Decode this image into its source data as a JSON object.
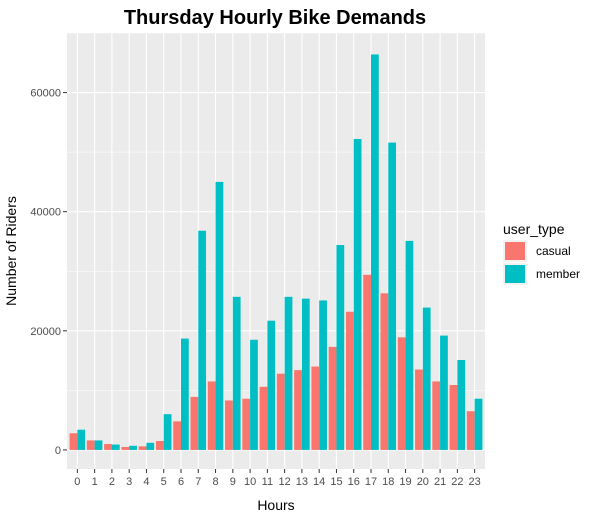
{
  "chart_data": {
    "type": "bar",
    "title": "Thursday Hourly Bike Demands",
    "xlabel": "Hours",
    "ylabel": "Number of Riders",
    "categories": [
      "0",
      "1",
      "2",
      "3",
      "4",
      "5",
      "6",
      "7",
      "8",
      "9",
      "10",
      "11",
      "12",
      "13",
      "14",
      "15",
      "16",
      "17",
      "18",
      "19",
      "20",
      "21",
      "22",
      "23"
    ],
    "series": [
      {
        "name": "casual",
        "color": "#F8766D",
        "values": [
          2800,
          1600,
          1000,
          500,
          600,
          1500,
          4800,
          8900,
          11500,
          8300,
          8600,
          10600,
          12800,
          13400,
          14000,
          17300,
          23200,
          29400,
          26300,
          18900,
          13500,
          11500,
          10900,
          6500
        ]
      },
      {
        "name": "member",
        "color": "#00BFC4",
        "values": [
          3400,
          1600,
          900,
          700,
          1200,
          6000,
          18700,
          36800,
          45000,
          25700,
          18500,
          21700,
          25700,
          25400,
          25100,
          34400,
          52200,
          66400,
          51600,
          35100,
          23900,
          19200,
          15100,
          8600
        ]
      }
    ],
    "ylim": [
      -3200,
      70000
    ],
    "yticks": [
      0,
      20000,
      40000,
      60000
    ],
    "ytick_labels": [
      "0",
      "20000",
      "40000",
      "60000"
    ],
    "grid": true,
    "legend": {
      "title": "user_type",
      "position": "right"
    },
    "panel_background": "#EBEBEB",
    "grid_color": "#FFFFFF"
  }
}
